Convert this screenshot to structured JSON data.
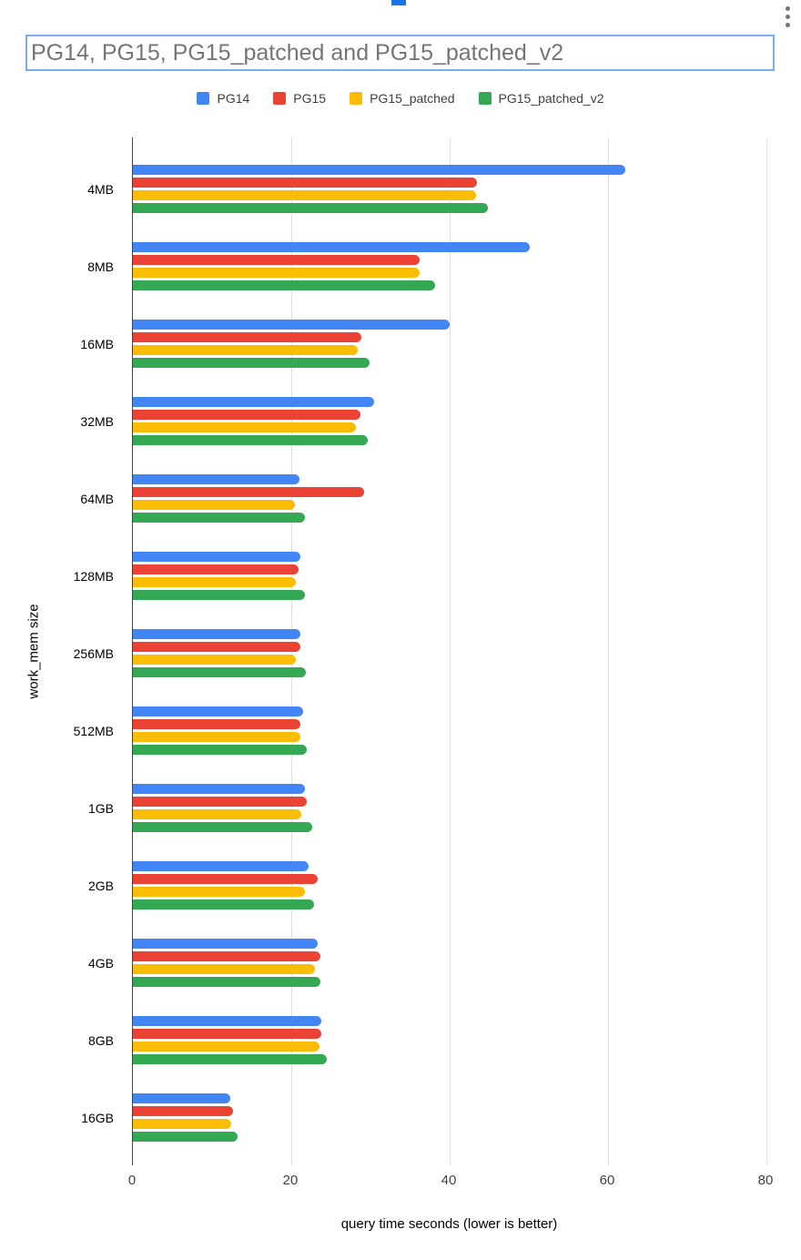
{
  "ui": {
    "icons": {
      "chart_menu": "three-dot-vertical-menu",
      "selection_handle": "chart-selection-handle"
    }
  },
  "chart_data": {
    "type": "bar",
    "orientation": "horizontal",
    "title": "PG14, PG15, PG15_patched and PG15_patched_v2",
    "xlabel": "query time seconds (lower is better)",
    "ylabel": "work_mem size",
    "xlim": [
      0,
      80
    ],
    "xticks": [
      0,
      20,
      40,
      60,
      80
    ],
    "grid": true,
    "legend_position": "top",
    "categories": [
      "4MB",
      "8MB",
      "16MB",
      "32MB",
      "64MB",
      "128MB",
      "256MB",
      "512MB",
      "1GB",
      "2GB",
      "4GB",
      "8GB",
      "16GB"
    ],
    "series": [
      {
        "name": "PG14",
        "color": "#4285F4",
        "values": [
          62.2,
          50.1,
          40.0,
          30.5,
          21.0,
          21.1,
          21.2,
          21.5,
          21.7,
          22.2,
          23.3,
          23.8,
          12.3
        ]
      },
      {
        "name": "PG15",
        "color": "#EA4335",
        "values": [
          43.4,
          36.2,
          28.8,
          28.7,
          29.2,
          20.9,
          21.1,
          21.2,
          21.9,
          23.3,
          23.7,
          23.8,
          12.7
        ]
      },
      {
        "name": "PG15_patched",
        "color": "#FBBC04",
        "values": [
          43.3,
          36.2,
          28.4,
          28.2,
          20.5,
          20.6,
          20.6,
          21.1,
          21.3,
          21.7,
          23.0,
          23.6,
          12.4
        ]
      },
      {
        "name": "PG15_patched_v2",
        "color": "#34A853",
        "values": [
          44.8,
          38.2,
          29.9,
          29.6,
          21.7,
          21.7,
          21.8,
          21.9,
          22.6,
          22.9,
          23.7,
          24.5,
          13.2
        ]
      }
    ]
  }
}
